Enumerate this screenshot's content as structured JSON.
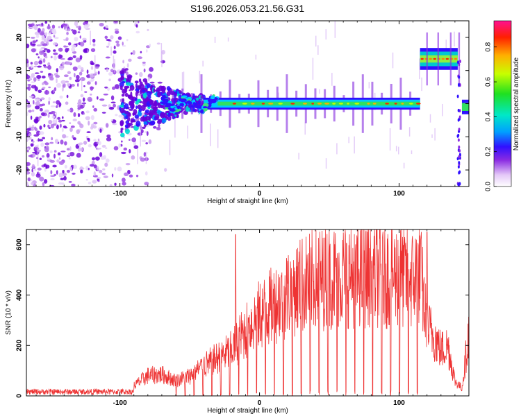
{
  "title": "S196.2026.053.21.56.G31",
  "chart_data": [
    {
      "type": "heatmap",
      "name": "spectrogram",
      "xlabel": "Height of straight line (km)",
      "ylabel": "Frequency (Hz)",
      "xlim": [
        -167,
        150
      ],
      "ylim": [
        -25,
        25
      ],
      "xticks": [
        -100,
        0,
        100
      ],
      "yticks": [
        -20,
        -10,
        0,
        10,
        20
      ],
      "colorbar": {
        "label": "Normalized spectral amplitude",
        "range": [
          0,
          0.95
        ],
        "ticks": [
          0.0,
          0.2,
          0.4,
          0.6,
          0.8
        ],
        "tick_labels": [
          "0.0",
          "0.2",
          "0.4",
          "0.6",
          "0.8"
        ]
      },
      "features": [
        {
          "label": "noise",
          "x_range": [
            -167,
            -70
          ],
          "y_range": [
            -25,
            25
          ]
        },
        {
          "label": "carrier",
          "x_range": [
            -70,
            115
          ],
          "frequency_hz": 0
        },
        {
          "label": "offset-carrier",
          "x_range": [
            115,
            142
          ],
          "frequency_hz": 13.5
        },
        {
          "label": "end-carrier",
          "x_range": [
            145,
            150
          ],
          "frequency_hz": -1
        }
      ]
    },
    {
      "type": "line",
      "name": "snr",
      "xlabel": "Height of straight line (km)",
      "ylabel": "SNR (10 * v/v)",
      "xlim": [
        -167,
        150
      ],
      "ylim": [
        0,
        660
      ],
      "xticks": [
        -100,
        0,
        100
      ],
      "yticks": [
        0,
        200,
        400,
        600
      ],
      "color": "#ee3333",
      "envelope": {
        "x": [
          -167,
          -110,
          -90,
          -80,
          -70,
          -60,
          -50,
          -40,
          -30,
          -20,
          -10,
          0,
          10,
          20,
          30,
          40,
          50,
          60,
          70,
          80,
          90,
          100,
          110,
          115,
          120,
          125,
          130,
          135,
          140,
          145,
          150
        ],
        "y": [
          15,
          18,
          40,
          80,
          85,
          60,
          80,
          120,
          150,
          180,
          260,
          320,
          360,
          410,
          440,
          460,
          470,
          480,
          485,
          480,
          480,
          480,
          460,
          500,
          270,
          240,
          180,
          200,
          60,
          30,
          250
        ]
      },
      "peaks": [
        [
          -17,
          640
        ],
        [
          120,
          650
        ]
      ]
    }
  ]
}
